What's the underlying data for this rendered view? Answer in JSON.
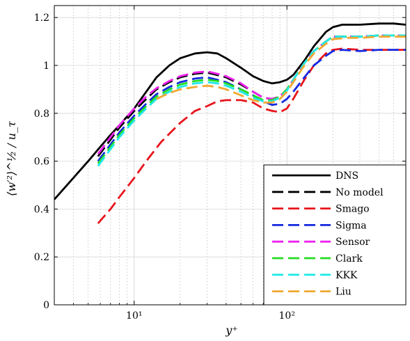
{
  "chart_data": {
    "type": "line",
    "xlabel": "y⁺",
    "ylabel": "⟨w′²⟩^½ / u_τ",
    "xscale": "log",
    "xlim": [
      3,
      600
    ],
    "ylim": [
      0,
      1.25
    ],
    "grid": true,
    "legend_position": "bottom-right",
    "x_ticks": [
      "10¹",
      "10²"
    ],
    "y_ticks": [
      "0",
      "0.2",
      "0.4",
      "0.6",
      "0.8",
      "1",
      "1.2"
    ],
    "series": [
      {
        "name": "DNS",
        "color": "#000000",
        "style": "solid",
        "x": [
          3,
          4,
          5,
          6,
          7,
          8,
          10,
          12,
          14,
          17,
          20,
          25,
          30,
          35,
          40,
          50,
          60,
          70,
          80,
          90,
          100,
          110,
          130,
          150,
          180,
          200,
          230,
          300,
          400,
          500,
          600
        ],
        "y": [
          0.44,
          0.53,
          0.6,
          0.66,
          0.71,
          0.75,
          0.82,
          0.89,
          0.95,
          1.0,
          1.03,
          1.05,
          1.055,
          1.05,
          1.03,
          0.99,
          0.955,
          0.935,
          0.925,
          0.93,
          0.94,
          0.96,
          1.02,
          1.08,
          1.14,
          1.16,
          1.17,
          1.17,
          1.175,
          1.175,
          1.17
        ]
      },
      {
        "name": "No model",
        "color": "#000000",
        "style": "dashed",
        "x": [
          5.8,
          7,
          8,
          10,
          12,
          14,
          17,
          20,
          25,
          30,
          35,
          40,
          50,
          60,
          70,
          80,
          90,
          100,
          110,
          130,
          150,
          180,
          200,
          250,
          300,
          400,
          500,
          600
        ],
        "y": [
          0.62,
          0.69,
          0.74,
          0.81,
          0.86,
          0.9,
          0.93,
          0.95,
          0.965,
          0.97,
          0.96,
          0.95,
          0.92,
          0.89,
          0.865,
          0.86,
          0.87,
          0.9,
          0.94,
          1.01,
          1.06,
          1.1,
          1.12,
          1.12,
          1.12,
          1.125,
          1.125,
          1.125
        ]
      },
      {
        "name": "Smago",
        "color": "#e8141c",
        "style": "dashed",
        "x": [
          5.8,
          7,
          8,
          10,
          12,
          15,
          20,
          25,
          30,
          35,
          40,
          50,
          60,
          70,
          80,
          90,
          100,
          110,
          130,
          150,
          180,
          200,
          230,
          300,
          400,
          500,
          600
        ],
        "y": [
          0.34,
          0.4,
          0.45,
          0.53,
          0.6,
          0.68,
          0.76,
          0.81,
          0.83,
          0.85,
          0.855,
          0.855,
          0.845,
          0.82,
          0.81,
          0.805,
          0.82,
          0.86,
          0.94,
          1.0,
          1.05,
          1.065,
          1.07,
          1.065,
          1.065,
          1.065,
          1.065
        ]
      },
      {
        "name": "Sigma",
        "color": "#1428e0",
        "style": "dashed",
        "x": [
          5.8,
          7,
          8,
          10,
          12,
          14,
          17,
          20,
          25,
          30,
          35,
          40,
          50,
          60,
          70,
          80,
          90,
          100,
          110,
          130,
          150,
          180,
          200,
          230,
          300,
          400,
          500,
          600
        ],
        "y": [
          0.6,
          0.67,
          0.72,
          0.79,
          0.84,
          0.88,
          0.91,
          0.93,
          0.945,
          0.95,
          0.94,
          0.93,
          0.9,
          0.875,
          0.85,
          0.835,
          0.84,
          0.86,
          0.89,
          0.95,
          1.0,
          1.04,
          1.06,
          1.065,
          1.06,
          1.065,
          1.065,
          1.065
        ]
      },
      {
        "name": "Sensor",
        "color": "#ee22ee",
        "style": "dashed",
        "x": [
          5.8,
          7,
          8,
          10,
          12,
          14,
          17,
          20,
          25,
          30,
          35,
          40,
          50,
          60,
          70,
          80,
          90,
          100,
          110,
          130,
          150,
          180,
          200,
          250,
          300,
          400,
          500,
          600
        ],
        "y": [
          0.63,
          0.7,
          0.75,
          0.82,
          0.87,
          0.905,
          0.935,
          0.955,
          0.97,
          0.975,
          0.965,
          0.955,
          0.925,
          0.89,
          0.865,
          0.86,
          0.87,
          0.9,
          0.94,
          1.01,
          1.06,
          1.1,
          1.12,
          1.12,
          1.12,
          1.125,
          1.125,
          1.125
        ]
      },
      {
        "name": "Clark",
        "color": "#22dd22",
        "style": "dashed",
        "x": [
          5.8,
          7,
          8,
          10,
          12,
          14,
          17,
          20,
          25,
          30,
          35,
          40,
          50,
          60,
          70,
          80,
          90,
          100,
          110,
          130,
          150,
          180,
          200,
          250,
          300,
          400,
          500,
          600
        ],
        "y": [
          0.59,
          0.66,
          0.71,
          0.78,
          0.83,
          0.87,
          0.9,
          0.92,
          0.935,
          0.94,
          0.935,
          0.925,
          0.9,
          0.875,
          0.855,
          0.855,
          0.87,
          0.9,
          0.94,
          1.01,
          1.06,
          1.1,
          1.12,
          1.12,
          1.12,
          1.125,
          1.125,
          1.125
        ]
      },
      {
        "name": "KKK",
        "color": "#22e8e8",
        "style": "dashed",
        "x": [
          5.8,
          7,
          8,
          10,
          12,
          14,
          17,
          20,
          25,
          30,
          35,
          40,
          50,
          60,
          70,
          80,
          90,
          100,
          110,
          130,
          150,
          180,
          200,
          250,
          300,
          400,
          500,
          600
        ],
        "y": [
          0.58,
          0.65,
          0.7,
          0.77,
          0.82,
          0.86,
          0.89,
          0.91,
          0.925,
          0.93,
          0.925,
          0.915,
          0.89,
          0.865,
          0.85,
          0.85,
          0.865,
          0.895,
          0.94,
          1.01,
          1.06,
          1.1,
          1.12,
          1.12,
          1.12,
          1.125,
          1.125,
          1.125
        ]
      },
      {
        "name": "Liu",
        "color": "#f0a830",
        "style": "dashed",
        "x": [
          14,
          17,
          20,
          25,
          30,
          35,
          40,
          50,
          60,
          70,
          80,
          90,
          100,
          110,
          130,
          150,
          180,
          200,
          250,
          300,
          400,
          500,
          600
        ],
        "y": [
          0.86,
          0.885,
          0.9,
          0.91,
          0.915,
          0.91,
          0.9,
          0.875,
          0.855,
          0.845,
          0.845,
          0.86,
          0.89,
          0.93,
          1.0,
          1.05,
          1.09,
          1.11,
          1.115,
          1.115,
          1.12,
          1.12,
          1.12
        ]
      }
    ]
  }
}
